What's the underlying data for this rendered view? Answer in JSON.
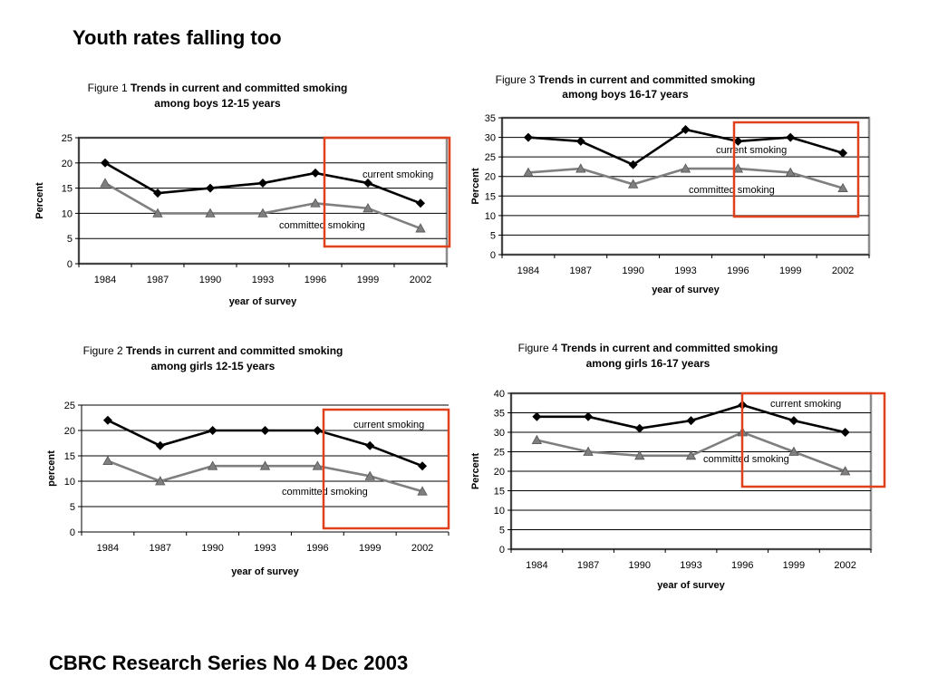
{
  "slide": {
    "title": "Youth rates falling too",
    "footer": "CBRC Research Series No 4 Dec 2003"
  },
  "colors": {
    "current": "#000000",
    "committed": "#7f7f7f",
    "highlight": "#e0401a",
    "grid": "#000000",
    "frame": "#8c8c8c"
  },
  "chart_data": [
    {
      "id": "fig1",
      "type": "line",
      "caption_prefix": "Figure 1",
      "caption_bold_line1": "Trends in current and committed smoking",
      "caption_line2": "among boys 12-15 years",
      "xlabel": "year of survey",
      "ylabel": "Percent",
      "categories": [
        "1984",
        "1987",
        "1990",
        "1993",
        "1996",
        "1999",
        "2002"
      ],
      "ylim": [
        0,
        25
      ],
      "yticks": [
        0,
        5,
        10,
        15,
        20,
        25
      ],
      "grid": true,
      "series": [
        {
          "name": "current smoking",
          "marker": "diamond",
          "values": [
            20,
            14,
            15,
            16,
            18,
            16,
            12
          ]
        },
        {
          "name": "committed smoking",
          "marker": "triangle",
          "values": [
            16,
            10,
            10,
            10,
            12,
            11,
            7
          ]
        }
      ],
      "highlight_from": "1996"
    },
    {
      "id": "fig2",
      "type": "line",
      "caption_prefix": "Figure 2",
      "caption_bold_line1": "Trends in current and committed smoking",
      "caption_line2": "among girls 12-15 years",
      "xlabel": "year of survey",
      "ylabel": "percent",
      "categories": [
        "1984",
        "1987",
        "1990",
        "1993",
        "1996",
        "1999",
        "2002"
      ],
      "ylim": [
        0,
        25
      ],
      "yticks": [
        0,
        5,
        10,
        15,
        20,
        25
      ],
      "grid": true,
      "series": [
        {
          "name": "current smoking",
          "marker": "diamond",
          "values": [
            22,
            17,
            20,
            20,
            20,
            17,
            13
          ]
        },
        {
          "name": "committed smoking",
          "marker": "triangle",
          "values": [
            14,
            10,
            13,
            13,
            13,
            11,
            8
          ]
        }
      ],
      "highlight_from": "1996"
    },
    {
      "id": "fig3",
      "type": "line",
      "caption_prefix": "Figure 3",
      "caption_bold_line1": "Trends in current and committed smoking",
      "caption_line2": "among boys 16-17 years",
      "xlabel": "year of survey",
      "ylabel": "Percent",
      "categories": [
        "1984",
        "1987",
        "1990",
        "1993",
        "1996",
        "1999",
        "2002"
      ],
      "ylim": [
        0,
        35
      ],
      "yticks": [
        0,
        5,
        10,
        15,
        20,
        25,
        30,
        35
      ],
      "grid": true,
      "series": [
        {
          "name": "current smoking",
          "marker": "diamond",
          "values": [
            30,
            29,
            23,
            32,
            29,
            30,
            26
          ]
        },
        {
          "name": "committed smoking",
          "marker": "triangle",
          "values": [
            21,
            22,
            18,
            22,
            22,
            21,
            17
          ]
        }
      ],
      "highlight_from": "1996"
    },
    {
      "id": "fig4",
      "type": "line",
      "caption_prefix": "Figure 4",
      "caption_bold_line1": "Trends in current and committed smoking",
      "caption_line2": "among girls 16-17 years",
      "xlabel": "year of survey",
      "ylabel": "Percent",
      "categories": [
        "1984",
        "1987",
        "1990",
        "1993",
        "1996",
        "1999",
        "2002"
      ],
      "ylim": [
        0,
        40
      ],
      "yticks": [
        0,
        5,
        10,
        15,
        20,
        25,
        30,
        35,
        40
      ],
      "grid": true,
      "series": [
        {
          "name": "current smoking",
          "marker": "diamond",
          "values": [
            34,
            34,
            31,
            33,
            37,
            33,
            30
          ]
        },
        {
          "name": "committed smoking",
          "marker": "triangle",
          "values": [
            28,
            25,
            24,
            24,
            30,
            25,
            20
          ]
        }
      ],
      "highlight_from": "1996"
    }
  ]
}
